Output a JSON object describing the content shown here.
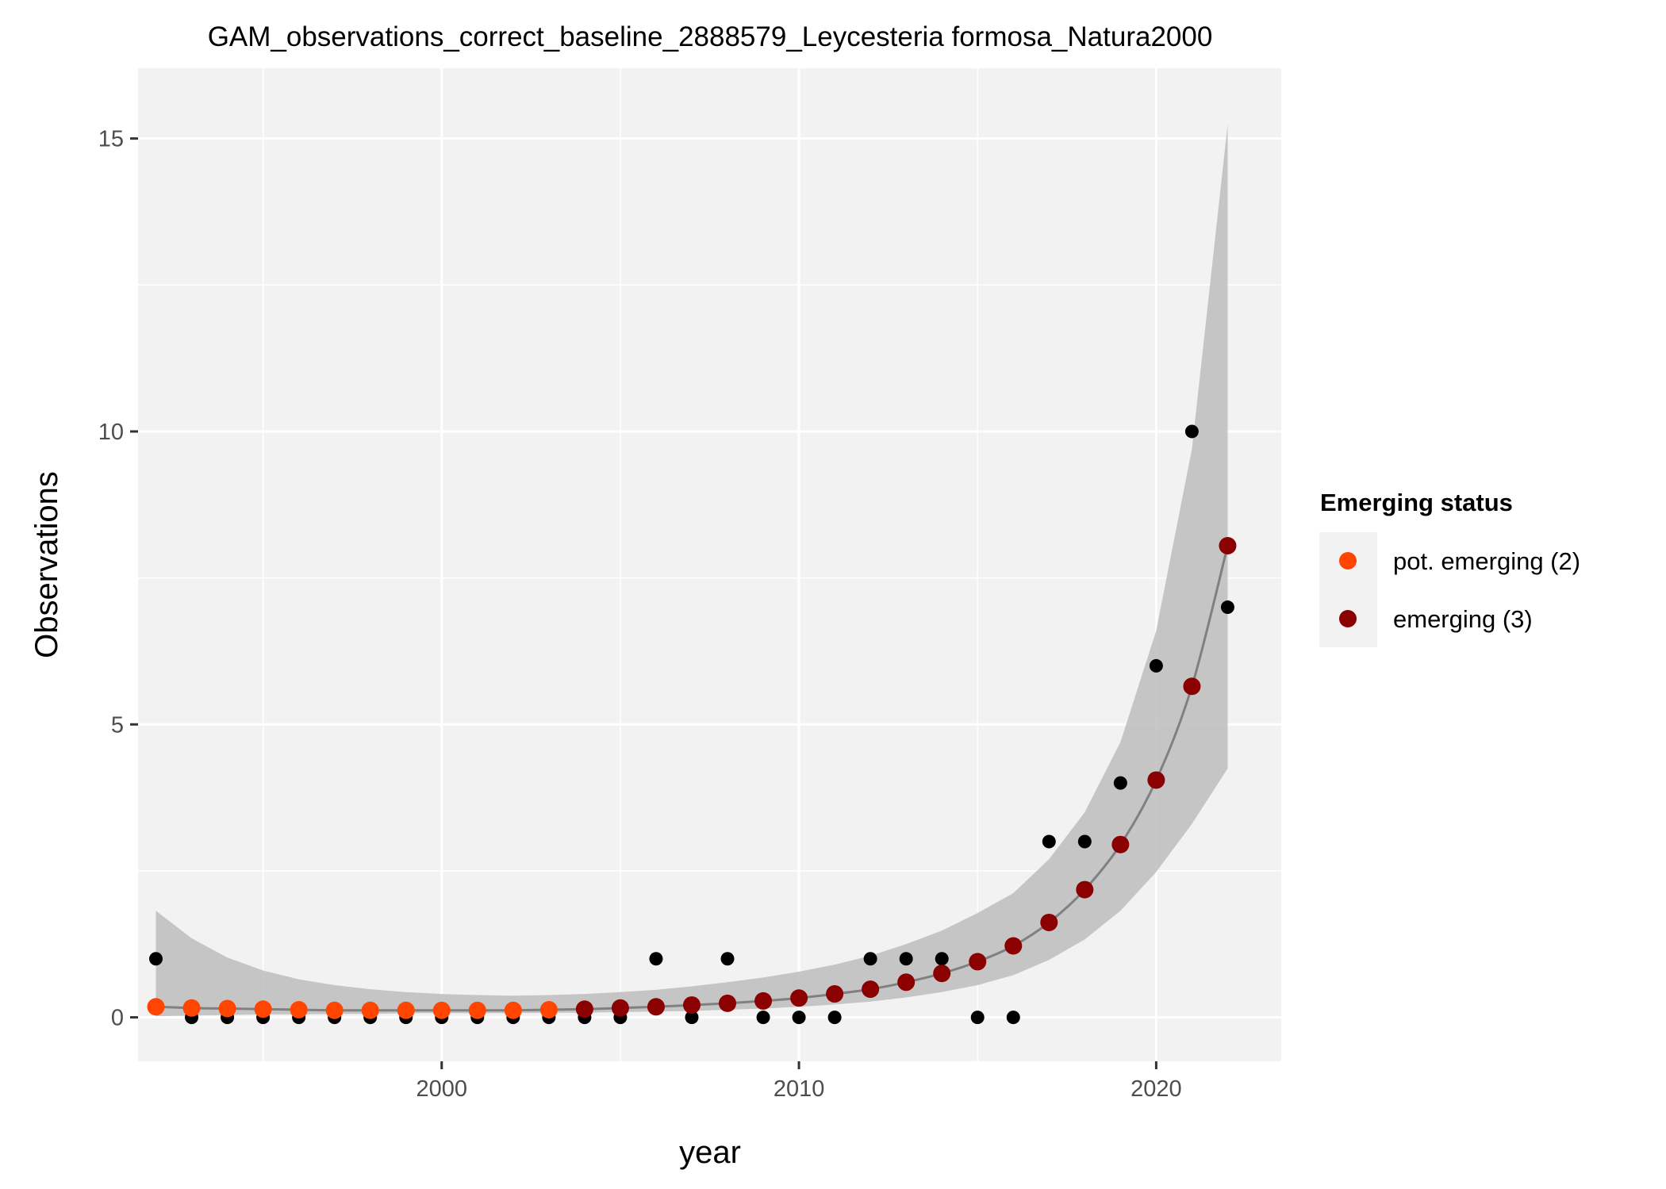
{
  "chart_data": {
    "type": "scatter",
    "title": "GAM_observations_correct_baseline_2888579_Leycesteria formosa_Natura2000",
    "xlabel": "year",
    "ylabel": "Observations",
    "xlim": [
      1991.5,
      2023.5
    ],
    "ylim": [
      -0.75,
      16.2
    ],
    "x_ticks": [
      2000,
      2010,
      2020
    ],
    "x_tick_labels": [
      "2000",
      "2010",
      "2020"
    ],
    "y_ticks": [
      0,
      5,
      10,
      15
    ],
    "y_tick_labels": [
      "0",
      "5",
      "10",
      "15"
    ],
    "grid": true,
    "legend_placement": "right",
    "legend": {
      "title": "Emerging status",
      "entries": [
        {
          "label": "pot. emerging (2)",
          "color": "#ff4500"
        },
        {
          "label": "emerging (3)",
          "color": "#8b0000"
        }
      ]
    },
    "colors": {
      "panel_bg": "#f2f2f2",
      "grid": "#ffffff",
      "ribbon": "#bdbdbd",
      "fit_line": "#808080",
      "observed": "#000000",
      "pot_emerging": "#ff4500",
      "emerging": "#8b0000"
    },
    "observed": {
      "x": [
        1992,
        1993,
        1994,
        1995,
        1996,
        1997,
        1998,
        1999,
        2000,
        2001,
        2002,
        2003,
        2004,
        2005,
        2006,
        2007,
        2008,
        2009,
        2010,
        2011,
        2012,
        2013,
        2014,
        2015,
        2016,
        2017,
        2018,
        2019,
        2020,
        2021,
        2022
      ],
      "y": [
        1,
        0,
        0,
        0,
        0,
        0,
        0,
        0,
        0,
        0,
        0,
        0,
        0,
        0,
        1,
        0,
        1,
        0,
        0,
        0,
        1,
        1,
        1,
        0,
        0,
        3,
        3,
        4,
        6,
        10,
        7
      ]
    },
    "fit": {
      "x": [
        1992,
        1993,
        1994,
        1995,
        1996,
        1997,
        1998,
        1999,
        2000,
        2001,
        2002,
        2003,
        2004,
        2005,
        2006,
        2007,
        2008,
        2009,
        2010,
        2011,
        2012,
        2013,
        2014,
        2015,
        2016,
        2017,
        2018,
        2019,
        2020,
        2021,
        2022
      ],
      "y": [
        0.18,
        0.16,
        0.15,
        0.14,
        0.13,
        0.12,
        0.12,
        0.12,
        0.12,
        0.12,
        0.12,
        0.13,
        0.14,
        0.16,
        0.18,
        0.21,
        0.24,
        0.28,
        0.33,
        0.4,
        0.48,
        0.6,
        0.75,
        0.95,
        1.22,
        1.62,
        2.18,
        2.95,
        4.05,
        5.65,
        8.05
      ],
      "lower": [
        0.02,
        0.03,
        0.04,
        0.05,
        0.05,
        0.06,
        0.06,
        0.07,
        0.07,
        0.07,
        0.07,
        0.08,
        0.08,
        0.09,
        0.1,
        0.11,
        0.13,
        0.15,
        0.18,
        0.22,
        0.27,
        0.34,
        0.43,
        0.55,
        0.72,
        0.98,
        1.33,
        1.82,
        2.48,
        3.3,
        4.25
      ],
      "upper": [
        1.82,
        1.35,
        1.02,
        0.8,
        0.65,
        0.55,
        0.48,
        0.43,
        0.4,
        0.38,
        0.37,
        0.38,
        0.4,
        0.43,
        0.47,
        0.53,
        0.6,
        0.68,
        0.78,
        0.9,
        1.05,
        1.25,
        1.48,
        1.78,
        2.12,
        2.7,
        3.5,
        4.7,
        6.6,
        9.7,
        15.25
      ]
    },
    "series": [
      {
        "name": "pot. emerging (2)",
        "x": [
          1992,
          1993,
          1994,
          1995,
          1996,
          1997,
          1998,
          1999,
          2000,
          2001,
          2002,
          2003
        ],
        "y": [
          0.18,
          0.16,
          0.15,
          0.14,
          0.13,
          0.12,
          0.12,
          0.12,
          0.12,
          0.12,
          0.12,
          0.13
        ]
      },
      {
        "name": "emerging (3)",
        "x": [
          2004,
          2005,
          2006,
          2007,
          2008,
          2009,
          2010,
          2011,
          2012,
          2013,
          2014,
          2015,
          2016,
          2017,
          2018,
          2019,
          2020,
          2021,
          2022
        ],
        "y": [
          0.14,
          0.16,
          0.18,
          0.21,
          0.24,
          0.28,
          0.33,
          0.4,
          0.48,
          0.6,
          0.75,
          0.95,
          1.22,
          1.62,
          2.18,
          2.95,
          4.05,
          5.65,
          8.05
        ]
      }
    ]
  }
}
